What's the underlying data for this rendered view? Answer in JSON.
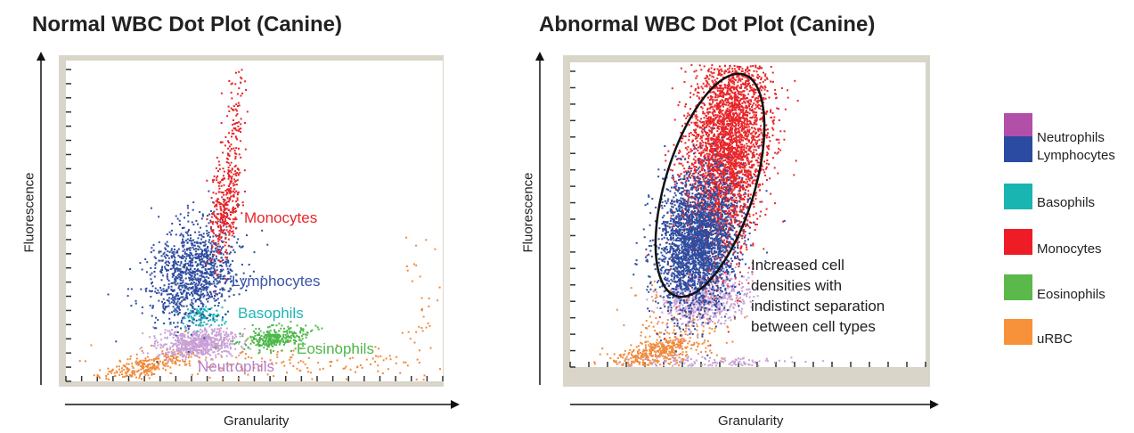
{
  "chart_data": [
    {
      "type": "scatter",
      "title": "Normal WBC Dot Plot (Canine)",
      "xlabel": "Granularity",
      "ylabel": "Fluorescence",
      "series": [
        {
          "name": "Monocytes",
          "color": "#e8262a",
          "label": "Monocytes",
          "label_color": "#e8262a"
        },
        {
          "name": "Lymphocytes",
          "color": "#2f4da0",
          "label": "Lymphocytes",
          "label_color": "#3b55a6"
        },
        {
          "name": "Basophils",
          "color": "#1fb5b5",
          "label": "Basophils",
          "label_color": "#1fb5b5"
        },
        {
          "name": "Eosinophils",
          "color": "#4cb848",
          "label": "Eosinophils",
          "label_color": "#4cb848"
        },
        {
          "name": "Neutrophils",
          "color": "#c9a0d6",
          "label": "Neutrophils",
          "label_color": "#b57ec9"
        },
        {
          "name": "uRBC",
          "color": "#f08a3c",
          "label": "",
          "label_color": "#f08a3c"
        }
      ]
    },
    {
      "type": "scatter",
      "title": "Abnormal WBC Dot Plot (Canine)",
      "xlabel": "Granularity",
      "ylabel": "Fluorescence",
      "annotation": [
        "Increased cell",
        "densities with",
        "indistinct separation",
        "between cell types"
      ],
      "series": [
        {
          "name": "Monocytes",
          "color": "#e8262a"
        },
        {
          "name": "Lymphocytes",
          "color": "#2f4da0"
        },
        {
          "name": "Neutrophils",
          "color": "#c9a0d6"
        },
        {
          "name": "uRBC",
          "color": "#f08a3c"
        }
      ]
    }
  ],
  "legend": [
    {
      "label": "Neutrophils",
      "color": "#b24fa8"
    },
    {
      "label": "Lymphocytes",
      "color": "#2b4aa1"
    },
    {
      "label": "Basophils",
      "color": "#19b5b0"
    },
    {
      "label": "Monocytes",
      "color": "#ee1c25"
    },
    {
      "label": "Eosinophils",
      "color": "#5ab94a"
    },
    {
      "label": "uRBC",
      "color": "#f7923a"
    }
  ]
}
